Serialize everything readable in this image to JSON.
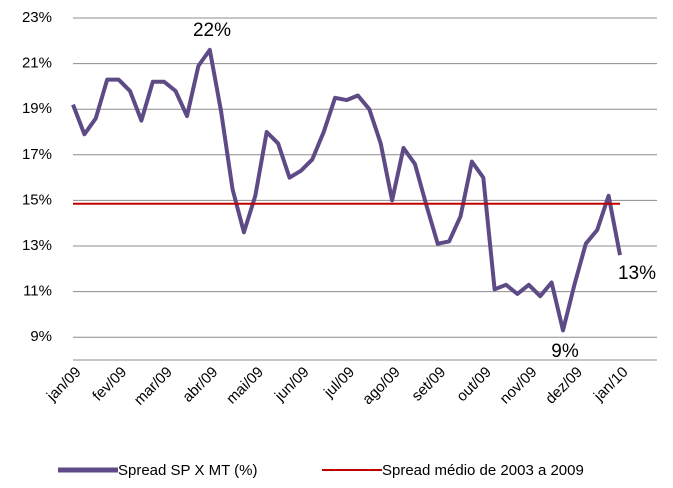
{
  "chart_data": {
    "type": "line",
    "categories": [
      "jan/09",
      null,
      null,
      null,
      "fev/09",
      null,
      null,
      null,
      "mar/09",
      null,
      null,
      null,
      "abr/09",
      null,
      null,
      null,
      "mai/09",
      null,
      null,
      null,
      "jun/09",
      null,
      null,
      null,
      "jul/09",
      null,
      null,
      null,
      "ago/09",
      null,
      null,
      null,
      "set/09",
      null,
      null,
      null,
      "out/09",
      null,
      null,
      null,
      "nov/09",
      null,
      null,
      null,
      "dez/09",
      null,
      null,
      null,
      "jan/10"
    ],
    "series": [
      {
        "name": "Spread SP X MT (%)",
        "color": "#5e4b86",
        "values": [
          19.2,
          17.9,
          18.6,
          20.3,
          20.3,
          19.8,
          18.5,
          20.2,
          20.2,
          19.8,
          18.7,
          20.9,
          21.6,
          18.9,
          15.5,
          13.6,
          15.2,
          18.0,
          17.5,
          16.0,
          16.3,
          16.8,
          18.0,
          19.5,
          19.4,
          19.6,
          19.0,
          17.5,
          15.0,
          17.3,
          16.6,
          14.8,
          13.1,
          13.2,
          14.3,
          16.7,
          16.0,
          11.1,
          11.3,
          10.9,
          11.3,
          10.8,
          11.4,
          9.3,
          11.3,
          13.1,
          13.7,
          15.2,
          12.6
        ]
      },
      {
        "name": "Spread médio de 2003 a 2009",
        "color": "#c00000",
        "values": [
          14.85,
          14.85,
          14.85,
          14.85,
          14.85,
          14.85,
          14.85,
          14.85,
          14.85,
          14.85,
          14.85,
          14.85,
          14.85,
          14.85,
          14.85,
          14.85,
          14.85,
          14.85,
          14.85,
          14.85,
          14.85,
          14.85,
          14.85,
          14.85,
          14.85,
          14.85,
          14.85,
          14.85,
          14.85,
          14.85,
          14.85,
          14.85,
          14.85,
          14.85,
          14.85,
          14.85,
          14.85,
          14.85,
          14.85,
          14.85,
          14.85,
          14.85,
          14.85,
          14.85,
          14.85,
          14.85,
          14.85,
          14.85,
          14.85
        ]
      }
    ],
    "ylim": [
      8,
      23
    ],
    "yticks": [
      {
        "value": 9,
        "label": "9%"
      },
      {
        "value": 11,
        "label": "11%"
      },
      {
        "value": 13,
        "label": "13%"
      },
      {
        "value": 15,
        "label": "15%"
      },
      {
        "value": 17,
        "label": "17%"
      },
      {
        "value": 19,
        "label": "19%"
      },
      {
        "value": 21,
        "label": "21%"
      },
      {
        "value": 23,
        "label": "23%"
      }
    ],
    "grid": true,
    "legend": "bottom",
    "annotations": [
      "22%",
      "9%",
      "13%"
    ]
  }
}
